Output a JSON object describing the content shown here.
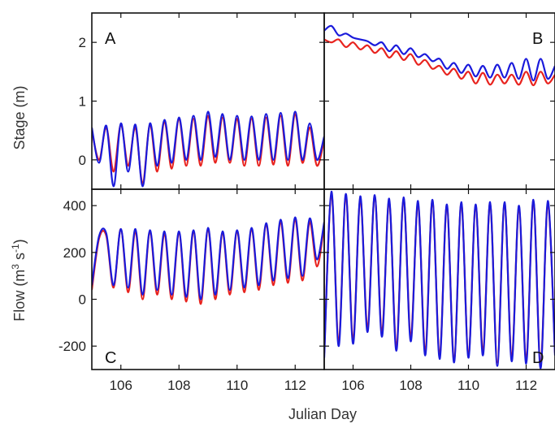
{
  "colors": {
    "observed": "#e8231e",
    "model": "#1a1adb",
    "axis": "#111111"
  },
  "chart_data": {
    "type": "line",
    "xlabel": "Julian Day",
    "xlim": [
      105,
      113
    ],
    "xticks": [
      106,
      108,
      110,
      112
    ],
    "rows": [
      {
        "ylabel": "Stage (m)",
        "ylim": [
          -0.5,
          2.5
        ],
        "yticks": [
          0,
          1,
          2
        ]
      },
      {
        "ylabel": "Flow (m³ s⁻¹)",
        "ylabel_base": "Flow (m",
        "ylabel_exp1": "3",
        "ylabel_mid": " s",
        "ylabel_exp2": "-1",
        "ylabel_end": ")",
        "ylim": [
          -300,
          470
        ],
        "yticks": [
          -200,
          0,
          200,
          400
        ]
      }
    ],
    "panels": [
      {
        "label": "A",
        "row": 0,
        "col": 0,
        "series": [
          {
            "color": "#e8231e",
            "x": [
              105,
              105.25,
              105.5,
              105.75,
              106,
              106.25,
              106.5,
              106.75,
              107,
              107.25,
              107.5,
              107.75,
              108,
              108.25,
              108.5,
              108.75,
              109,
              109.25,
              109.5,
              109.75,
              110,
              110.25,
              110.5,
              110.75,
              111,
              111.25,
              111.5,
              111.75,
              112,
              112.25,
              112.5,
              112.75,
              113
            ],
            "y": [
              0.5,
              0.0,
              0.55,
              -0.2,
              0.6,
              -0.1,
              0.55,
              -0.4,
              0.6,
              -0.2,
              0.65,
              -0.15,
              0.7,
              -0.1,
              0.7,
              -0.1,
              0.75,
              -0.05,
              0.72,
              -0.05,
              0.7,
              -0.1,
              0.7,
              -0.1,
              0.72,
              -0.08,
              0.75,
              -0.1,
              0.78,
              -0.05,
              0.55,
              -0.1,
              0.35
            ]
          },
          {
            "color": "#1a1adb",
            "x": [
              105,
              105.25,
              105.5,
              105.75,
              106,
              106.25,
              106.5,
              106.75,
              107,
              107.25,
              107.5,
              107.75,
              108,
              108.25,
              108.5,
              108.75,
              109,
              109.25,
              109.5,
              109.75,
              110,
              110.25,
              110.5,
              110.75,
              111,
              111.25,
              111.5,
              111.75,
              112,
              112.25,
              112.5,
              112.75,
              113
            ],
            "y": [
              0.55,
              -0.05,
              0.58,
              -0.45,
              0.62,
              -0.2,
              0.6,
              -0.45,
              0.62,
              -0.1,
              0.68,
              -0.05,
              0.72,
              0.0,
              0.75,
              0.0,
              0.82,
              0.05,
              0.78,
              0.0,
              0.75,
              0.0,
              0.74,
              0.0,
              0.78,
              0.0,
              0.8,
              0.0,
              0.82,
              0.0,
              0.62,
              0.0,
              0.4
            ]
          }
        ]
      },
      {
        "label": "B",
        "row": 0,
        "col": 1,
        "series": [
          {
            "color": "#e8231e",
            "x": [
              105,
              105.25,
              105.5,
              105.75,
              106,
              106.25,
              106.5,
              106.75,
              107,
              107.25,
              107.5,
              107.75,
              108,
              108.25,
              108.5,
              108.75,
              109,
              109.25,
              109.5,
              109.75,
              110,
              110.25,
              110.5,
              110.75,
              111,
              111.25,
              111.5,
              111.75,
              112,
              112.25,
              112.5,
              112.75,
              113
            ],
            "y": [
              2.05,
              2.0,
              2.05,
              1.92,
              2.0,
              1.88,
              1.95,
              1.82,
              1.9,
              1.74,
              1.85,
              1.7,
              1.8,
              1.62,
              1.7,
              1.55,
              1.6,
              1.45,
              1.55,
              1.38,
              1.5,
              1.3,
              1.48,
              1.28,
              1.45,
              1.3,
              1.45,
              1.28,
              1.5,
              1.27,
              1.5,
              1.3,
              1.45
            ]
          },
          {
            "color": "#1a1adb",
            "x": [
              105,
              105.25,
              105.5,
              105.75,
              106,
              106.25,
              106.5,
              106.75,
              107,
              107.25,
              107.5,
              107.75,
              108,
              108.25,
              108.5,
              108.75,
              109,
              109.25,
              109.5,
              109.75,
              110,
              110.25,
              110.5,
              110.75,
              111,
              111.25,
              111.5,
              111.75,
              112,
              112.25,
              112.5,
              112.75,
              113
            ],
            "y": [
              2.2,
              2.28,
              2.12,
              2.15,
              2.08,
              2.05,
              2.02,
              1.95,
              2.0,
              1.85,
              1.95,
              1.8,
              1.9,
              1.75,
              1.8,
              1.68,
              1.72,
              1.55,
              1.65,
              1.48,
              1.62,
              1.42,
              1.6,
              1.4,
              1.62,
              1.4,
              1.65,
              1.38,
              1.72,
              1.35,
              1.72,
              1.38,
              1.6
            ]
          }
        ]
      },
      {
        "label": "C",
        "row": 1,
        "col": 0,
        "series": [
          {
            "color": "#e8231e",
            "x": [
              105,
              105.25,
              105.5,
              105.75,
              106,
              106.25,
              106.5,
              106.75,
              107,
              107.25,
              107.5,
              107.75,
              108,
              108.25,
              108.5,
              108.75,
              109,
              109.25,
              109.5,
              109.75,
              110,
              110.25,
              110.5,
              110.75,
              111,
              111.25,
              111.5,
              111.75,
              112,
              112.25,
              112.5,
              112.75,
              113
            ],
            "y": [
              40,
              260,
              270,
              50,
              300,
              30,
              290,
              0,
              290,
              20,
              280,
              0,
              285,
              -10,
              290,
              -20,
              300,
              0,
              285,
              20,
              290,
              30,
              300,
              40,
              320,
              60,
              330,
              70,
              340,
              80,
              330,
              140,
              320
            ]
          },
          {
            "color": "#1a1adb",
            "x": [
              105,
              105.25,
              105.5,
              105.75,
              106,
              106.25,
              106.5,
              106.75,
              107,
              107.25,
              107.5,
              107.75,
              108,
              108.25,
              108.5,
              108.75,
              109,
              109.25,
              109.5,
              109.75,
              110,
              110.25,
              110.5,
              110.75,
              111,
              111.25,
              111.5,
              111.75,
              112,
              112.25,
              112.5,
              112.75,
              113
            ],
            "y": [
              60,
              270,
              280,
              60,
              300,
              50,
              300,
              20,
              295,
              40,
              290,
              20,
              290,
              10,
              295,
              0,
              305,
              20,
              290,
              40,
              295,
              50,
              305,
              60,
              325,
              80,
              340,
              90,
              350,
              100,
              345,
              170,
              330
            ]
          }
        ]
      },
      {
        "label": "D",
        "row": 1,
        "col": 1,
        "series": [
          {
            "color": "#e8231e",
            "x": [
              105,
              105.25,
              105.5,
              105.75,
              106,
              106.25,
              106.5,
              106.75,
              107,
              107.25,
              107.5,
              107.75,
              108,
              108.25,
              108.5,
              108.75,
              109,
              109.25,
              109.5,
              109.75,
              110,
              110.25,
              110.5,
              110.75,
              111,
              111.25,
              111.5,
              111.75,
              112,
              112.25,
              112.5,
              112.75,
              113
            ],
            "y": [
              -230,
              450,
              -180,
              440,
              -170,
              430,
              -120,
              440,
              -140,
              420,
              -200,
              430,
              -160,
              410,
              -220,
              420,
              -240,
              400,
              -260,
              410,
              -240,
              400,
              -220,
              410,
              -270,
              410,
              -250,
              390,
              -260,
              420,
              -280,
              410,
              -230
            ]
          },
          {
            "color": "#1a1adb",
            "x": [
              105,
              105.25,
              105.5,
              105.75,
              106,
              106.25,
              106.5,
              106.75,
              107,
              107.25,
              107.5,
              107.75,
              108,
              108.25,
              108.5,
              108.75,
              109,
              109.25,
              109.5,
              109.75,
              110,
              110.25,
              110.5,
              110.75,
              111,
              111.25,
              111.5,
              111.75,
              112,
              112.25,
              112.5,
              112.75,
              113
            ],
            "y": [
              -250,
              460,
              -200,
              450,
              -190,
              440,
              -140,
              445,
              -160,
              430,
              -220,
              435,
              -180,
              420,
              -240,
              425,
              -255,
              405,
              -270,
              415,
              -250,
              405,
              -240,
              415,
              -285,
              415,
              -265,
              400,
              -275,
              425,
              -295,
              420,
              -240
            ]
          }
        ]
      }
    ]
  }
}
